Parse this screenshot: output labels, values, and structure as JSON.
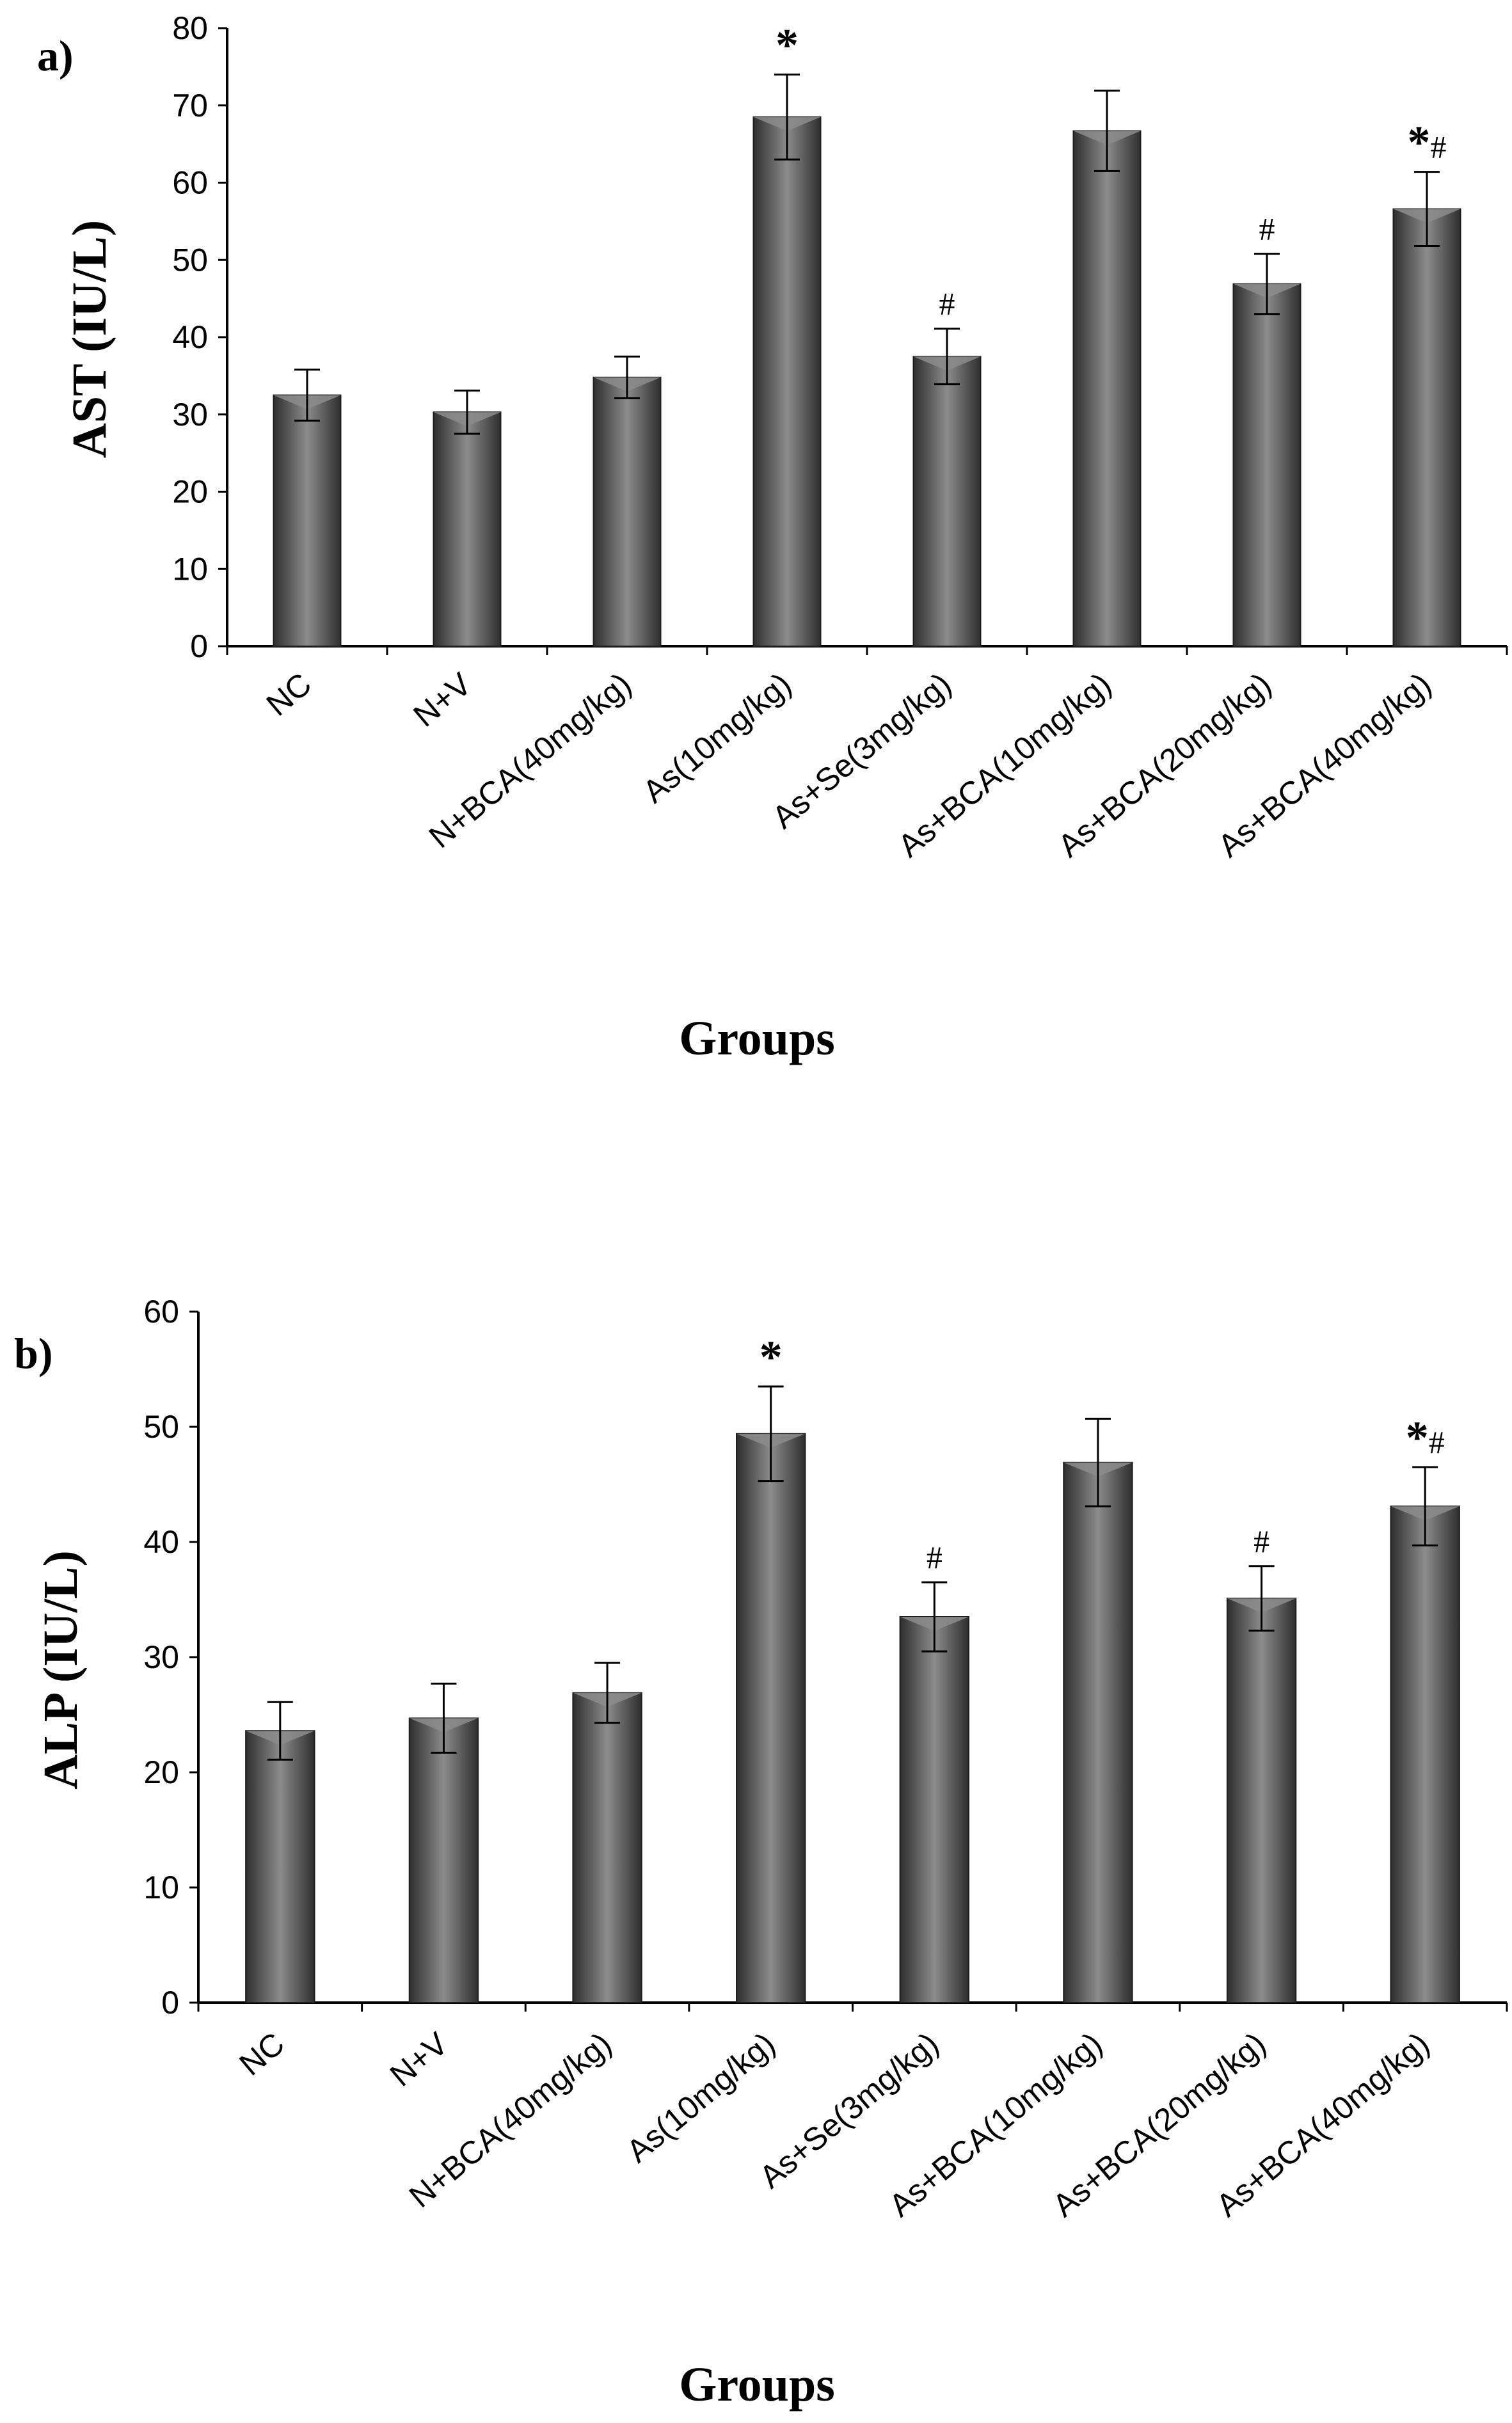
{
  "colors": {
    "bar_dark": "#2e2e2e",
    "bar_mid": "#6a6a6a",
    "bar_light": "#8c8c8c",
    "axis": "#000000"
  },
  "chart_data": [
    {
      "type": "bar",
      "panel_label": "a)",
      "title": "",
      "xlabel": "Groups",
      "ylabel": "AST (IU/L)",
      "ylim": [
        0,
        80
      ],
      "yticks": [
        "0",
        "10",
        "20",
        "30",
        "40",
        "50",
        "60",
        "70",
        "80"
      ],
      "categories": [
        "NC",
        "N+V",
        "N+BCA(40mg/kg)",
        "As(10mg/kg)",
        "As+Se(3mg/kg)",
        "As+BCA(10mg/kg)",
        "As+BCA(20mg/kg)",
        "As+BCA(40mg/kg)"
      ],
      "values": [
        32.5,
        30.3,
        34.8,
        68.5,
        37.5,
        66.7,
        46.9,
        56.6
      ],
      "errors": [
        3.3,
        2.8,
        2.7,
        5.5,
        3.6,
        5.2,
        3.9,
        4.8
      ],
      "annotations": [
        "",
        "",
        "",
        "*",
        "#",
        "",
        "#",
        "*#"
      ],
      "grid": false
    },
    {
      "type": "bar",
      "panel_label": "b)",
      "title": "",
      "xlabel": "Groups",
      "ylabel": "ALP (IU/L)",
      "ylim": [
        0,
        60
      ],
      "yticks": [
        "0",
        "10",
        "20",
        "30",
        "40",
        "50",
        "60"
      ],
      "categories": [
        "NC",
        "N+V",
        "N+BCA(40mg/kg)",
        "As(10mg/kg)",
        "As+Se(3mg/kg)",
        "As+BCA(10mg/kg)",
        "As+BCA(20mg/kg)",
        "As+BCA(40mg/kg)"
      ],
      "values": [
        23.6,
        24.7,
        26.9,
        49.4,
        33.5,
        46.9,
        35.1,
        43.1
      ],
      "errors": [
        2.5,
        3.0,
        2.6,
        4.1,
        3.0,
        3.8,
        2.8,
        3.4
      ],
      "annotations": [
        "",
        "",
        "",
        "*",
        "#",
        "",
        "#",
        "*#"
      ],
      "grid": false
    }
  ]
}
